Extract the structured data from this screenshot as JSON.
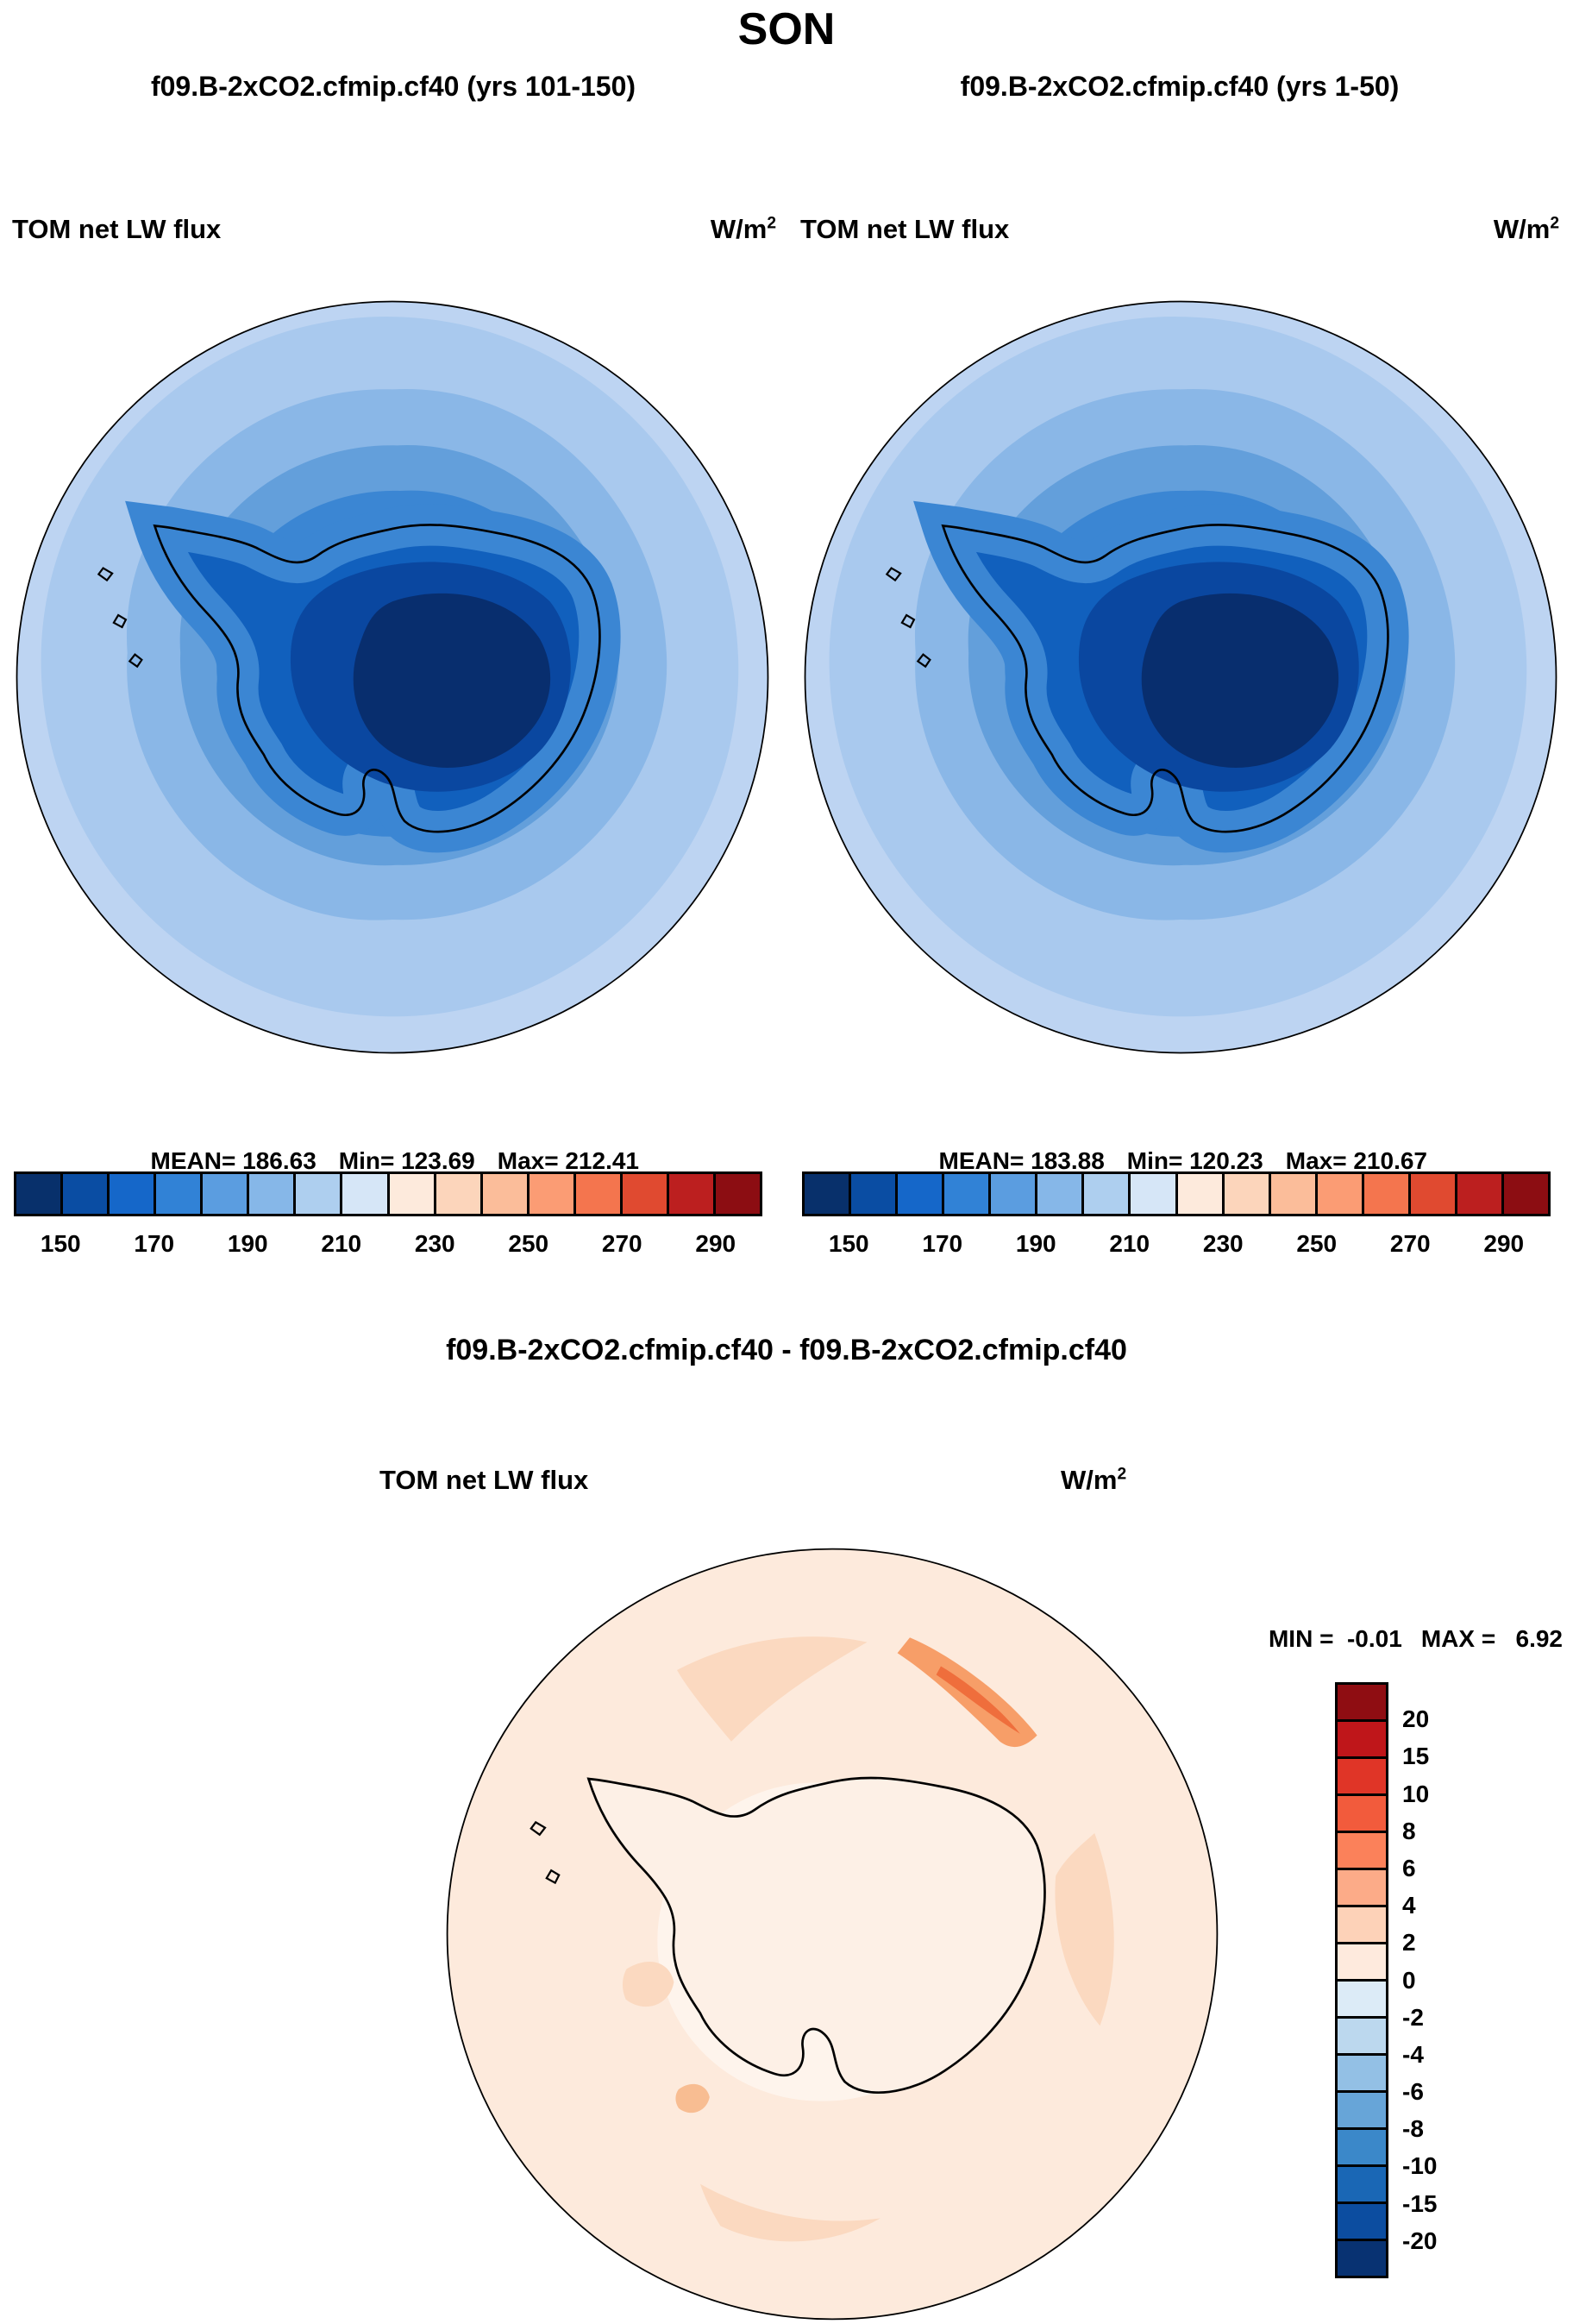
{
  "page_title": "SON",
  "panels": {
    "left": {
      "header": "f09.B-2xCO2.cfmip.cf40 (yrs 101-150)",
      "field_label": "TOM net LW flux",
      "units_base": "W/m",
      "units_exp": "2",
      "mean_label": "MEAN= 186.63",
      "min_label": "Min= 123.69",
      "max_label": "Max= 212.41"
    },
    "right": {
      "header": "f09.B-2xCO2.cfmip.cf40 (yrs 1-50)",
      "field_label": "TOM net LW flux",
      "units_base": "W/m",
      "units_exp": "2",
      "mean_label": "MEAN= 183.88",
      "min_label": "Min= 120.23",
      "max_label": "Max= 210.67"
    },
    "diff": {
      "header": "f09.B-2xCO2.cfmip.cf40 - f09.B-2xCO2.cfmip.cf40",
      "field_label": "TOM net LW flux",
      "units_base": "W/m",
      "units_exp": "2",
      "min_label": "MIN =  -0.01",
      "max_label": "MAX =   6.92"
    }
  },
  "flux_colorbar": {
    "tick_labels": [
      "150",
      "170",
      "190",
      "210",
      "230",
      "250",
      "270",
      "290"
    ],
    "colors": [
      "#08306b",
      "#0a4da3",
      "#1567c9",
      "#3182d6",
      "#5b9de0",
      "#86b7e8",
      "#aecfef",
      "#d6e6f7",
      "#fdeadc",
      "#fcd5bb",
      "#fbbd9a",
      "#fb9c74",
      "#f4754e",
      "#e04a30",
      "#bc1f1f",
      "#8c0d12"
    ]
  },
  "diff_colorbar": {
    "labels": [
      "20",
      "15",
      "10",
      "8",
      "6",
      "4",
      "2",
      "0",
      "-2",
      "-4",
      "-6",
      "-8",
      "-10",
      "-15",
      "-20"
    ],
    "colors": [
      "#8f0d12",
      "#bf161a",
      "#e03527",
      "#f25b3c",
      "#fb815a",
      "#fcab88",
      "#fdd2b8",
      "#feeadd",
      "#dcebf7",
      "#bcd8ee",
      "#93c0e5",
      "#67a5d8",
      "#3b88c9",
      "#1a67b5",
      "#0c4da0",
      "#083272"
    ]
  },
  "chart_data": [
    {
      "type": "heatmap",
      "panel": "top-left",
      "season": "SON",
      "title": "f09.B-2xCO2.cfmip.cf40 (yrs 101-150)",
      "variable": "TOM net LW flux",
      "units": "W/m^2",
      "projection": "south polar stereographic (Antarctica centered)",
      "stats": {
        "mean": 186.63,
        "min": 123.69,
        "max": 212.41
      },
      "colorbar_ticks": [
        150,
        170,
        190,
        210,
        230,
        250,
        270,
        290
      ],
      "colorbar_cell_range": [
        140,
        300
      ],
      "n_colors": 16,
      "palette": "blue-to-red diverging",
      "notes": "Low values (dark blue, ~150-170) over Antarctic interior; higher values (light blue, ~210-230) over surrounding Southern Ocean"
    },
    {
      "type": "heatmap",
      "panel": "top-right",
      "season": "SON",
      "title": "f09.B-2xCO2.cfmip.cf40 (yrs 1-50)",
      "variable": "TOM net LW flux",
      "units": "W/m^2",
      "projection": "south polar stereographic (Antarctica centered)",
      "stats": {
        "mean": 183.88,
        "min": 120.23,
        "max": 210.67
      },
      "colorbar_ticks": [
        150,
        170,
        190,
        210,
        230,
        250,
        270,
        290
      ],
      "colorbar_cell_range": [
        140,
        300
      ],
      "n_colors": 16,
      "palette": "blue-to-red diverging",
      "notes": "Visually nearly identical to top-left panel"
    },
    {
      "type": "heatmap",
      "panel": "bottom-difference",
      "season": "SON",
      "title": "f09.B-2xCO2.cfmip.cf40 - f09.B-2xCO2.cfmip.cf40",
      "variable": "TOM net LW flux",
      "units": "W/m^2",
      "projection": "south polar stereographic (Antarctica centered)",
      "stats": {
        "min": -0.01,
        "max": 6.92
      },
      "colorbar_levels": [
        -20,
        -15,
        -10,
        -8,
        -6,
        -4,
        -2,
        0,
        2,
        4,
        6,
        8,
        10,
        15,
        20
      ],
      "n_colors": 16,
      "palette": "red-to-blue diverging (vertical bar, warm at top)",
      "notes": "Difference field almost entirely 0 to +4 (pale orange), with a few orange streaks up to ~7"
    }
  ]
}
